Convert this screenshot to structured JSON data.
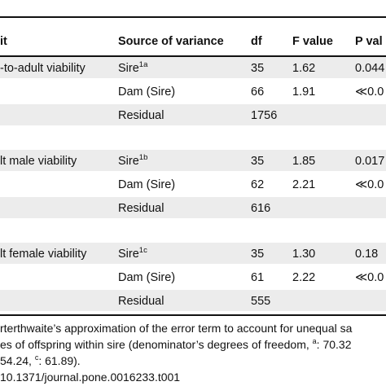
{
  "table": {
    "headers": [
      "it",
      "Source of variance",
      "df",
      "F value",
      "P val"
    ],
    "rows": [
      {
        "trait": "-to-adult viability",
        "source": "Sire",
        "source_sup": "1a",
        "df": "35",
        "f": "1.62",
        "p": "0.044"
      },
      {
        "trait": "",
        "source": "Dam (Sire)",
        "source_sup": "",
        "df": "66",
        "f": "1.91",
        "p": "≪0.0"
      },
      {
        "trait": "",
        "source": "Residual",
        "source_sup": "",
        "df": "1756",
        "f": "",
        "p": ""
      },
      {
        "trait": "lt male viability",
        "source": "Sire",
        "source_sup": "1b",
        "df": "35",
        "f": "1.85",
        "p": "0.017"
      },
      {
        "trait": "",
        "source": "Dam (Sire)",
        "source_sup": "",
        "df": "62",
        "f": "2.21",
        "p": "≪0.0"
      },
      {
        "trait": "",
        "source": "Residual",
        "source_sup": "",
        "df": "616",
        "f": "",
        "p": ""
      },
      {
        "trait": "lt female viability",
        "source": "Sire",
        "source_sup": "1c",
        "df": "35",
        "f": "1.30",
        "p": "0.18"
      },
      {
        "trait": "",
        "source": "Dam (Sire)",
        "source_sup": "",
        "df": "61",
        "f": "2.22",
        "p": "≪0.0"
      },
      {
        "trait": "",
        "source": "Residual",
        "source_sup": "",
        "df": "555",
        "f": "",
        "p": ""
      }
    ]
  },
  "footnotes": {
    "line1": "rterthwaite’s approximation of the error term to account for unequal sa",
    "line2_a": "es of offspring within sire (denominator’s degrees of freedom, ",
    "line2_sup_a": "a",
    "line2_b": ": 70.32",
    "line3_a": "54.24, ",
    "line3_sup_c": "c",
    "line3_b": ": 61.89).",
    "doi": "10.1371/journal.pone.0016233.t001"
  }
}
